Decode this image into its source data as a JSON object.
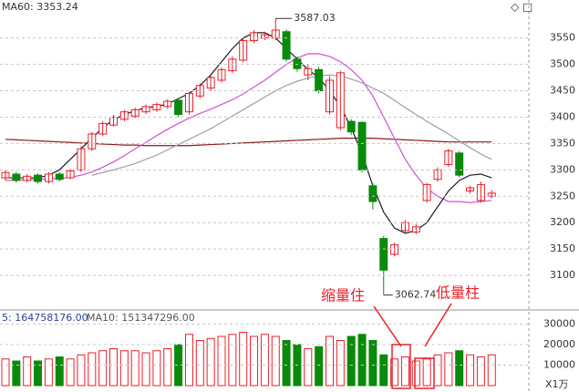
{
  "chart_data": {
    "type": "candlestick",
    "header": "MA60: 3353.24",
    "high_label": "3587.03",
    "low_label": "3062.74",
    "annotation_left": "缩量住",
    "annotation_right": "低量柱",
    "volume_header_ma5": "5: 164758176.00",
    "volume_header_ma10": "MA10: 151347296.00",
    "volume_unit": "X1万",
    "up_color": "#e8202a",
    "down_color": "#0a8a0a",
    "open": [
      3285,
      3292,
      3280,
      3290,
      3278,
      3292,
      3285,
      3300,
      3340,
      3368,
      3385,
      3396,
      3402,
      3410,
      3414,
      3420,
      3432,
      3410,
      3440,
      3455,
      3470,
      3488,
      3508,
      3545,
      3550,
      3550,
      3562,
      3510,
      3480,
      3490,
      3410,
      3380,
      3392,
      3390,
      3270,
      3170,
      3140,
      3185,
      3182,
      3242,
      3282,
      3310,
      3332,
      3260,
      3242,
      3250
    ],
    "close": [
      3295,
      3280,
      3288,
      3278,
      3292,
      3282,
      3298,
      3340,
      3368,
      3388,
      3400,
      3410,
      3414,
      3420,
      3424,
      3430,
      3405,
      3445,
      3460,
      3475,
      3490,
      3510,
      3545,
      3560,
      3556,
      3565,
      3510,
      3492,
      3492,
      3450,
      3470,
      3484,
      3372,
      3300,
      3240,
      3110,
      3158,
      3200,
      3192,
      3272,
      3300,
      3336,
      3290,
      3266,
      3272,
      3256
    ],
    "high": [
      3300,
      3296,
      3292,
      3294,
      3296,
      3296,
      3302,
      3345,
      3372,
      3392,
      3404,
      3414,
      3418,
      3424,
      3428,
      3434,
      3436,
      3448,
      3464,
      3480,
      3494,
      3515,
      3550,
      3565,
      3562,
      3587.03,
      3566,
      3515,
      3500,
      3495,
      3478,
      3488,
      3396,
      3392,
      3275,
      3175,
      3162,
      3205,
      3198,
      3276,
      3305,
      3340,
      3336,
      3270,
      3278,
      3262
    ],
    "low": [
      3280,
      3276,
      3276,
      3274,
      3274,
      3278,
      3282,
      3296,
      3336,
      3364,
      3382,
      3392,
      3398,
      3406,
      3410,
      3416,
      3400,
      3405,
      3436,
      3450,
      3466,
      3484,
      3504,
      3540,
      3546,
      3546,
      3505,
      3486,
      3470,
      3445,
      3405,
      3375,
      3366,
      3295,
      3225,
      3062.74,
      3136,
      3180,
      3178,
      3238,
      3278,
      3306,
      3286,
      3255,
      3238,
      3246
    ],
    "lines": [
      {
        "color": "#1a1a2e",
        "values": [
          3285,
          3285,
          3285,
          3285,
          3290,
          3300,
          3320,
          3340,
          3360,
          3380,
          3395,
          3405,
          3412,
          3418,
          3420,
          3425,
          3435,
          3445,
          3460,
          3480,
          3505,
          3530,
          3550,
          3560,
          3560,
          3550,
          3530,
          3510,
          3490,
          3475,
          3450,
          3420,
          3380,
          3330,
          3270,
          3220,
          3190,
          3180,
          3185,
          3200,
          3230,
          3260,
          3280,
          3290,
          3292,
          3285
        ]
      },
      {
        "color": "#d050d0",
        "values": [
          3280,
          3280,
          3281,
          3282,
          3283,
          3284,
          3286,
          3290,
          3296,
          3305,
          3315,
          3327,
          3340,
          3352,
          3365,
          3377,
          3388,
          3398,
          3407,
          3415,
          3424,
          3433,
          3444,
          3457,
          3470,
          3485,
          3500,
          3512,
          3520,
          3520,
          3515,
          3505,
          3490,
          3470,
          3440,
          3400,
          3360,
          3320,
          3290,
          3265,
          3250,
          3240,
          3240,
          3238,
          3240,
          3242
        ]
      },
      {
        "color": "#a0a0a0",
        "values": [
          null,
          null,
          null,
          null,
          null,
          null,
          null,
          null,
          3290,
          3295,
          3300,
          3306,
          3312,
          3320,
          3328,
          3338,
          3348,
          3358,
          3368,
          3378,
          3390,
          3402,
          3414,
          3426,
          3438,
          3450,
          3460,
          3468,
          3474,
          3478,
          3480,
          3478,
          3472,
          3465,
          3455,
          3445,
          3432,
          3418,
          3405,
          3392,
          3380,
          3368,
          3355,
          3342,
          3330,
          3320
        ]
      },
      {
        "color": "#8b1a1a",
        "values": [
          3358,
          3357,
          3356,
          3355,
          3354,
          3353,
          3352,
          3351,
          3350,
          3349,
          3348,
          3347,
          3347,
          3346,
          3346,
          3346,
          3346,
          3346,
          3347,
          3348,
          3349,
          3350,
          3351,
          3352,
          3353,
          3354,
          3355,
          3356,
          3357,
          3358,
          3359,
          3360,
          3360,
          3360,
          3360,
          3359,
          3358,
          3357,
          3356,
          3355,
          3354,
          3353,
          3353,
          3353,
          3353,
          3353
        ]
      }
    ],
    "ylim": [
      3038,
      3622
    ],
    "yticks": [
      3100,
      3150,
      3200,
      3250,
      3300,
      3350,
      3400,
      3450,
      3500,
      3550
    ],
    "volume": [
      13000,
      12000,
      14000,
      12000,
      13000,
      14000,
      13000,
      15000,
      16000,
      17000,
      18000,
      17000,
      17000,
      16000,
      17000,
      18000,
      20000,
      25000,
      22000,
      23000,
      24000,
      25000,
      26000,
      24000,
      25000,
      24000,
      22000,
      20000,
      18000,
      19000,
      24000,
      22000,
      24000,
      25000,
      22000,
      15000,
      13000,
      14000,
      12000,
      13000,
      15000,
      16000,
      17000,
      15000,
      14000,
      15000
    ],
    "volume_ylim": [
      0,
      36000
    ],
    "volume_yticks": [
      10000,
      20000,
      30000
    ]
  }
}
